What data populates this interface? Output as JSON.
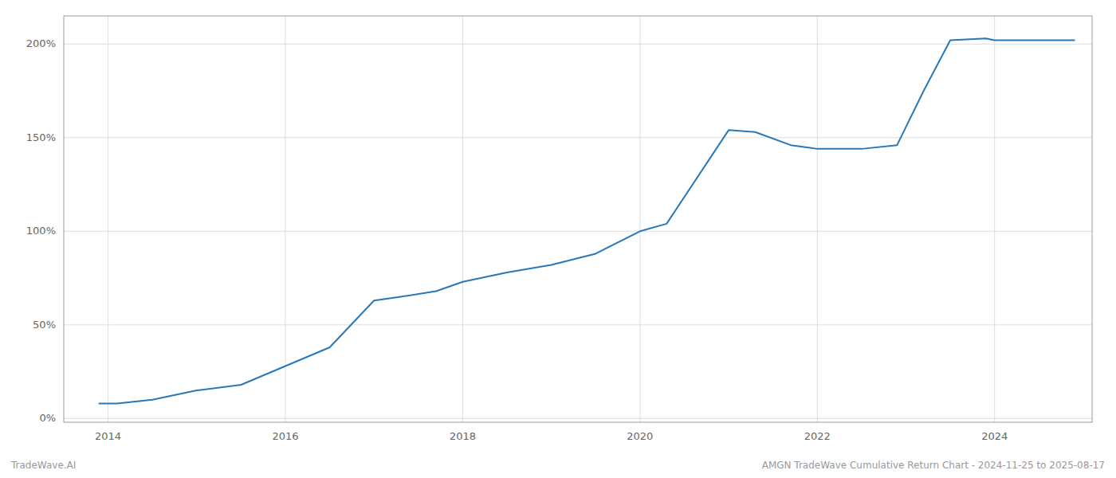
{
  "chart_data": {
    "type": "line",
    "title": "AMGN TradeWave Cumulative Return Chart - 2024-11-25 to 2025-08-17",
    "annotation": "TradeWave.AI",
    "x": [
      2013.9,
      2014.1,
      2014.5,
      2015.0,
      2015.5,
      2016.0,
      2016.5,
      2017.0,
      2017.3,
      2017.7,
      2018.0,
      2018.5,
      2019.0,
      2019.5,
      2020.0,
      2020.3,
      2021.0,
      2021.3,
      2021.7,
      2022.0,
      2022.5,
      2022.9,
      2023.2,
      2023.5,
      2023.9,
      2024.0,
      2024.4,
      2024.9
    ],
    "values": [
      8,
      8,
      10,
      15,
      18,
      28,
      38,
      63,
      65,
      68,
      73,
      78,
      82,
      88,
      100,
      104,
      154,
      153,
      146,
      144,
      144,
      146,
      175,
      202,
      203,
      202,
      202,
      202
    ],
    "color": "#2878b8",
    "xlim": [
      2013.5,
      2025.1
    ],
    "ylim": [
      -2,
      215
    ],
    "xticks": [
      2014,
      2016,
      2018,
      2020,
      2022,
      2024
    ],
    "yticks": [
      {
        "value": 0,
        "label": "0%"
      },
      {
        "value": 50,
        "label": "50%"
      },
      {
        "value": 100,
        "label": "100%"
      },
      {
        "value": 150,
        "label": "150%"
      },
      {
        "value": 200,
        "label": "200%"
      }
    ],
    "grid": true
  }
}
